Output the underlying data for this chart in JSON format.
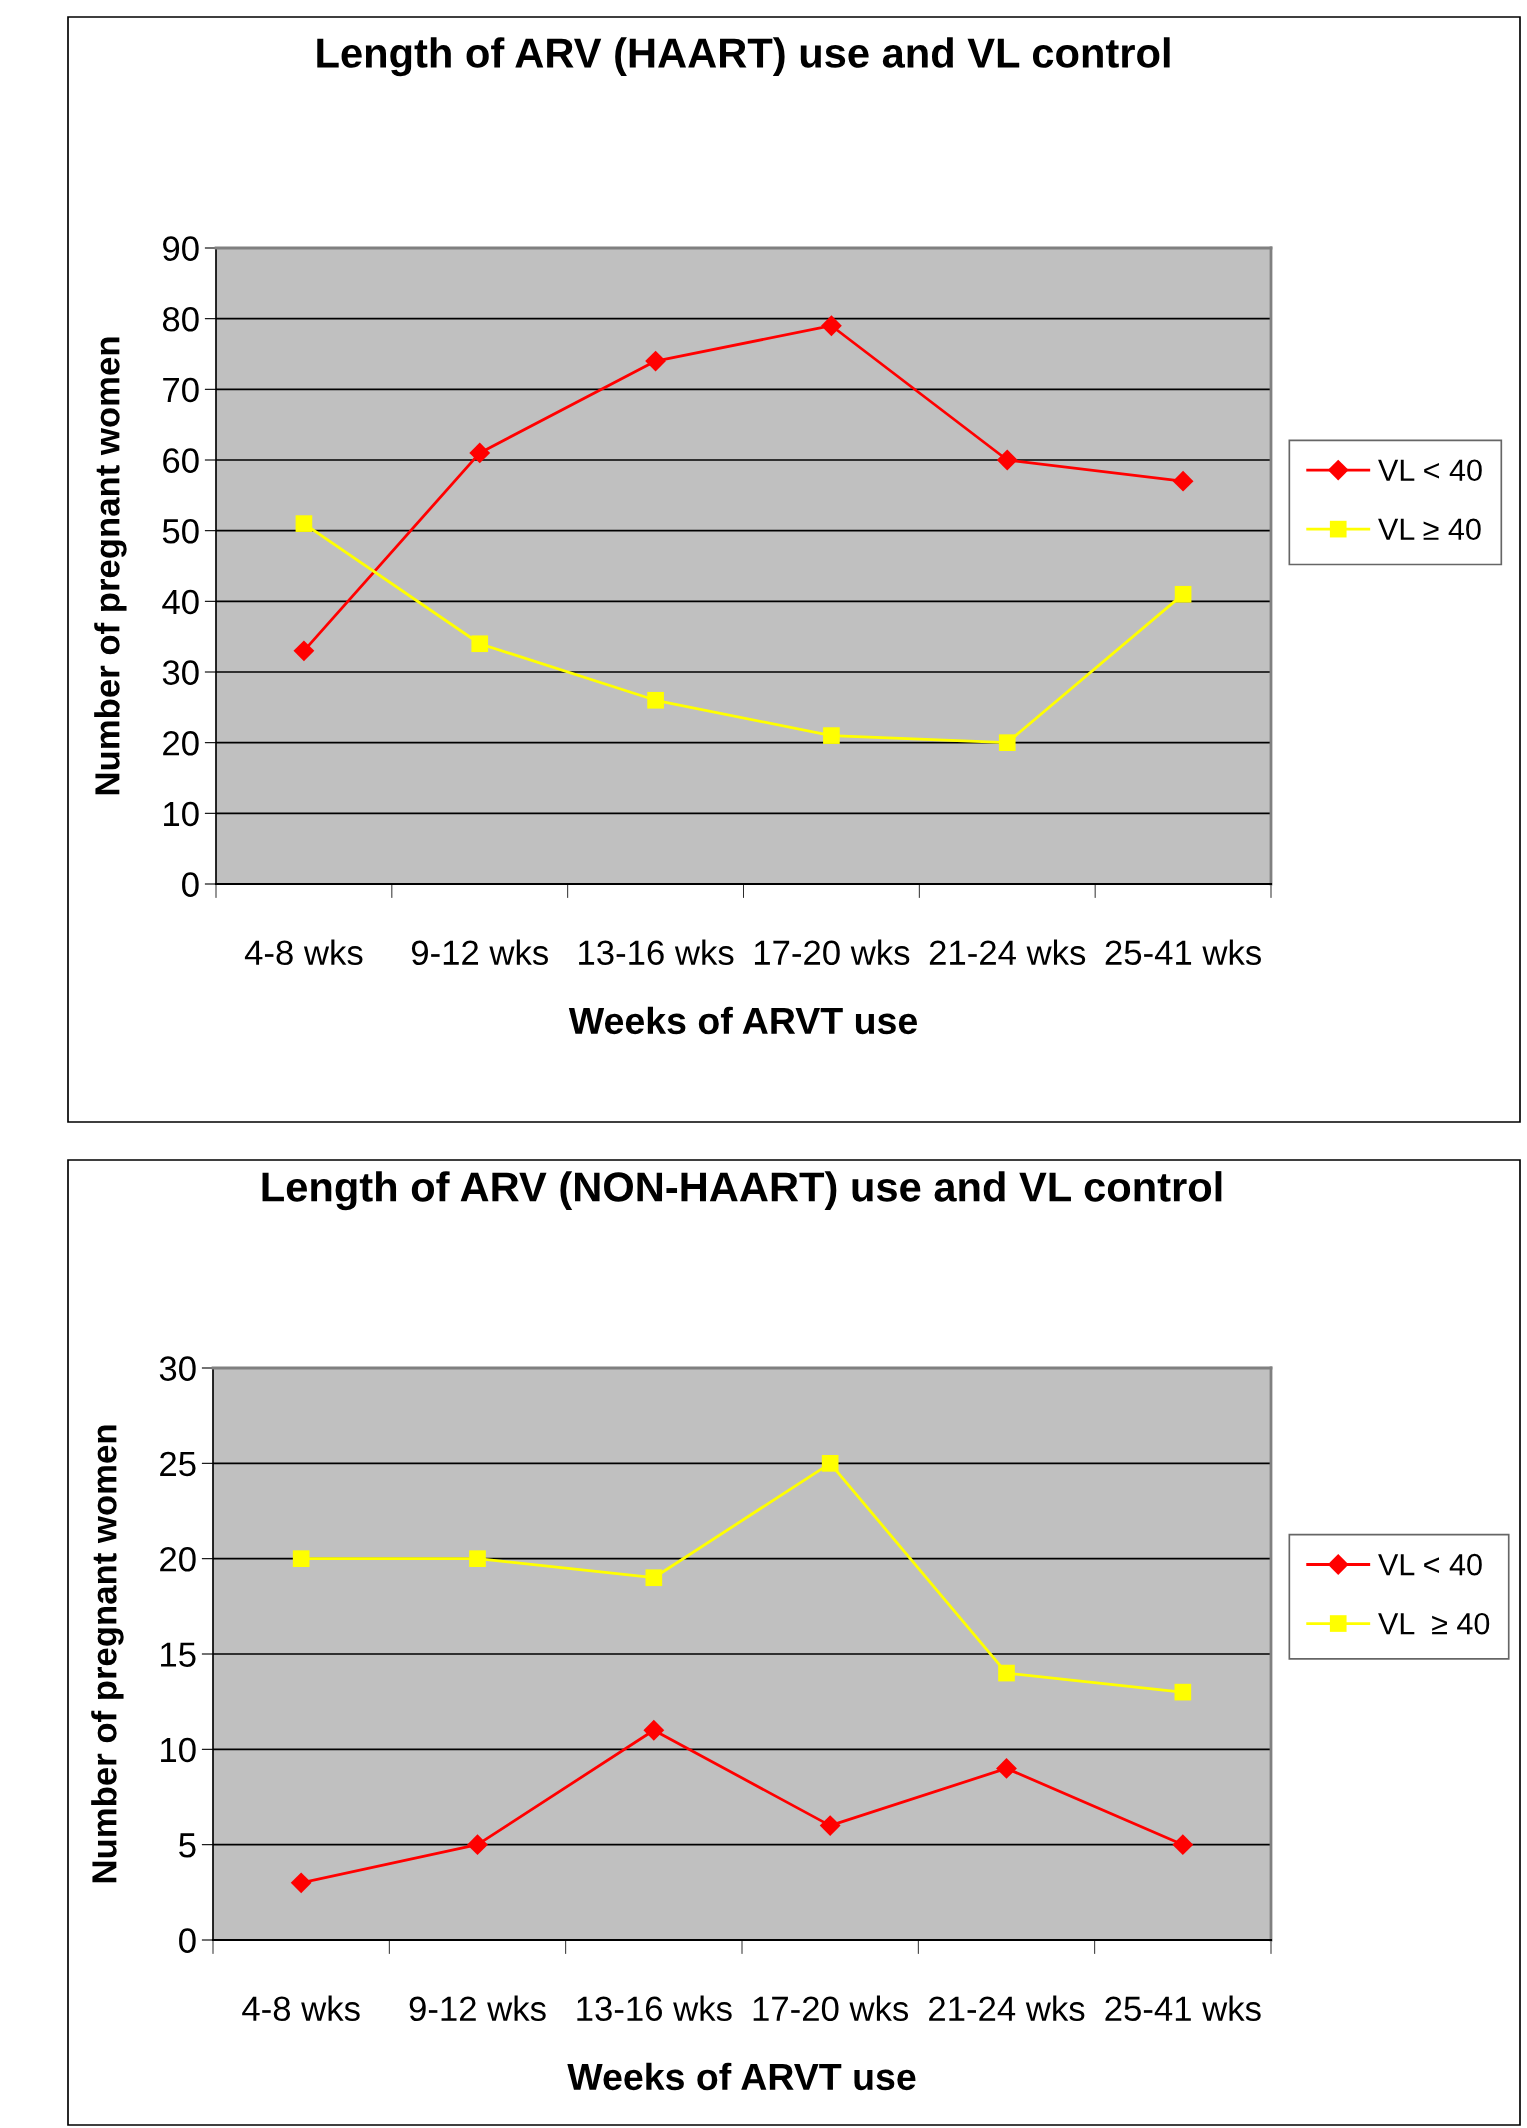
{
  "chart_data": [
    {
      "type": "line",
      "title": "Length of ARV (HAART) use and VL control",
      "xlabel": "Weeks of ARVT use",
      "ylabel": "Number of pregnant women",
      "categories": [
        "4-8 wks",
        "9-12 wks",
        "13-16 wks",
        "17-20 wks",
        "21-24 wks",
        "25-41 wks"
      ],
      "series": [
        {
          "name": "VL < 40",
          "color": "#ff0000",
          "marker": "diamond",
          "values": [
            33,
            61,
            74,
            79,
            60,
            57
          ]
        },
        {
          "name": "VL ≥ 40",
          "color": "#ffff00",
          "marker": "square",
          "values": [
            51,
            34,
            26,
            21,
            20,
            41
          ]
        }
      ],
      "ylim": [
        0,
        90
      ],
      "yticks": [
        0,
        10,
        20,
        30,
        40,
        50,
        60,
        70,
        80,
        90
      ],
      "grid": "y",
      "legend": "right",
      "line_style": "solid"
    },
    {
      "type": "line",
      "title": "Length of ARV (NON-HAART) use and VL control",
      "xlabel": "Weeks of ARVT use",
      "ylabel": "Number of pregnant women",
      "categories": [
        "4-8 wks",
        "9-12 wks",
        "13-16 wks",
        "17-20 wks",
        "21-24 wks",
        "25-41 wks"
      ],
      "series": [
        {
          "name": "VL < 40",
          "color": "#ff0000",
          "marker": "diamond",
          "values": [
            3,
            5,
            11,
            6,
            9,
            5
          ]
        },
        {
          "name": "VL  ≥ 40",
          "color": "#ffff00",
          "marker": "square",
          "values": [
            20,
            20,
            19,
            25,
            14,
            13
          ]
        }
      ],
      "ylim": [
        0,
        30
      ],
      "yticks": [
        0,
        5,
        10,
        15,
        20,
        25,
        30
      ],
      "grid": "y",
      "legend": "right",
      "line_style": "solid"
    }
  ]
}
